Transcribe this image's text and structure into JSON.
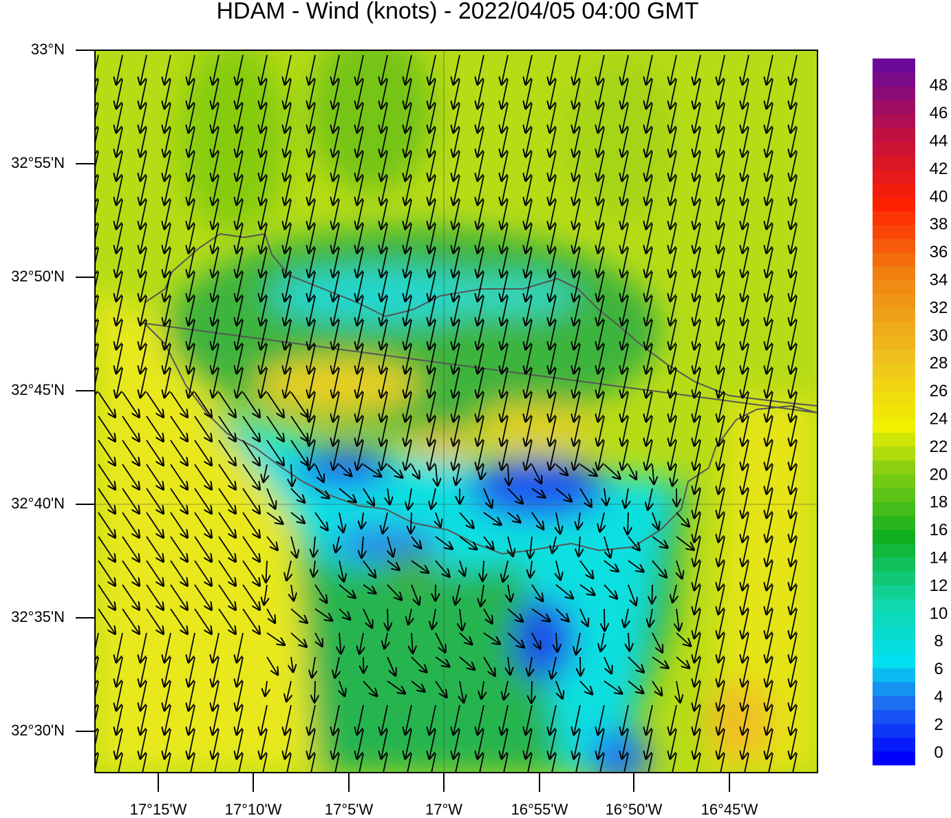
{
  "title": "HDAM - Wind (knots)  -  2022/04/05  04:00 GMT",
  "axes": {
    "lat_ticks": [
      "33°N",
      "32°55'N",
      "32°50'N",
      "32°45'N",
      "32°40'N",
      "32°35'N",
      "32°30'N"
    ],
    "lon_ticks": [
      "17°15'W",
      "17°10'W",
      "17°5'W",
      "17°W",
      "16°55'W",
      "16°50'W",
      "16°45'W"
    ]
  },
  "colorbar": {
    "ticks": [
      0,
      2,
      4,
      6,
      8,
      10,
      12,
      14,
      16,
      18,
      20,
      22,
      24,
      26,
      28,
      30,
      32,
      34,
      36,
      38,
      40,
      42,
      44,
      46,
      48
    ]
  }
}
